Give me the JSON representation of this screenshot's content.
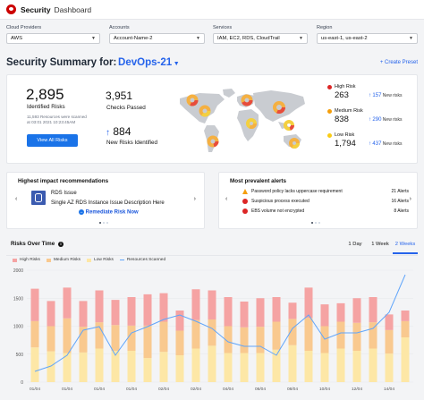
{
  "app": {
    "brand": "Security",
    "section": "Dashboard"
  },
  "filters": [
    {
      "label": "Cloud Providers",
      "value": "AWS"
    },
    {
      "label": "Accounts",
      "value": "Account-Name-2"
    },
    {
      "label": "Services",
      "value": "IAM, EC2, RDS, CloudTrail"
    },
    {
      "label": "Region",
      "value": "us-east-1, us-east-2"
    }
  ],
  "summary": {
    "title_prefix": "Security Summary for:",
    "project": "DevOps-21",
    "create_preset": "+ Create Preset",
    "identified_risks_value": "2,895",
    "identified_risks_label": "Identified Risks",
    "scan_note_line1": "11,593 Resources were scanned",
    "scan_note_line2": "at 03:01 2021 10:23:45AM",
    "view_all_button": "View All Risks",
    "checks_passed_value": "3,951",
    "checks_passed_label": "Checks Passed",
    "new_risks_value": "884",
    "new_risks_label": "New Risks Identified",
    "new_risks_arrow": "↑"
  },
  "risks": [
    {
      "label": "High Risk",
      "value": "263",
      "delta": "157",
      "delta_label": "New risks",
      "color": "#dc2626"
    },
    {
      "label": "Medium Risk",
      "value": "838",
      "delta": "290",
      "delta_label": "New risks",
      "color": "#f59e0b"
    },
    {
      "label": "Low Risk",
      "value": "1,794",
      "delta": "437",
      "delta_label": "New risks",
      "color": "#facc15"
    }
  ],
  "recommendations": {
    "title": "Highest impact recommendations",
    "item_title": "RDS Issue",
    "item_desc": "Single AZ RDS Instance Issue Description Here",
    "action": "Remediate Risk Now"
  },
  "alerts": {
    "title": "Most prevalent alerts",
    "items": [
      {
        "text": "Password policy lacks uppercase requirement",
        "count": "21 Alerts",
        "color": "#f59e0b",
        "icon": "warning-icon"
      },
      {
        "text": "Suspicious process executed",
        "count": "16 Alerts",
        "color": "#dc2626",
        "icon": "error-icon"
      },
      {
        "text": "EBS volume not encrypted",
        "count": "8 Alerts",
        "color": "#dc2626",
        "icon": "error-icon"
      }
    ]
  },
  "risks_over_time": {
    "title": "Risks Over Time",
    "tabs": [
      "1 Day",
      "1 Week",
      "2 Weeks"
    ],
    "active_tab": "2 Weeks"
  },
  "chart_data": {
    "type": "bar",
    "stacked": true,
    "categories": [
      "01/04",
      "01/04",
      "01/04",
      "01/04",
      "01/04",
      "01/04",
      "01/04",
      "01/04",
      "02/04",
      "02/04",
      "02/04",
      "03/04",
      "04/04",
      "05/04",
      "06/04",
      "07/04",
      "08/04",
      "09/04",
      "10/04",
      "11/04",
      "12/04",
      "13/04",
      "14/04",
      "14/04"
    ],
    "ylim": [
      0,
      2000
    ],
    "yticks": [
      0,
      500,
      1000,
      1500,
      2000
    ],
    "legend_position": "top-left",
    "grid": true,
    "series": [
      {
        "name": "Low Risks",
        "color": "#fde7a6",
        "values": [
          620,
          550,
          520,
          530,
          600,
          560,
          560,
          430,
          540,
          480,
          600,
          650,
          520,
          520,
          520,
          580,
          660,
          560,
          520,
          600,
          560,
          600,
          510,
          800
        ]
      },
      {
        "name": "Medium Risks",
        "color": "#f9c98f",
        "values": [
          470,
          450,
          620,
          460,
          470,
          460,
          450,
          580,
          540,
          440,
          510,
          470,
          480,
          460,
          470,
          500,
          470,
          590,
          480,
          480,
          500,
          470,
          420,
          290
        ]
      },
      {
        "name": "High Risks",
        "color": "#f5a3a3",
        "values": [
          580,
          450,
          550,
          460,
          570,
          450,
          510,
          560,
          510,
          360,
          550,
          520,
          520,
          460,
          510,
          440,
          290,
          540,
          390,
          330,
          440,
          450,
          280,
          190
        ]
      },
      {
        "name": "Resources Scanned",
        "type": "line",
        "color": "#60a5fa",
        "values": [
          12,
          18,
          30,
          58,
          62,
          30,
          55,
          62,
          70,
          75,
          68,
          60,
          45,
          40,
          40,
          30,
          60,
          75,
          48,
          55,
          55,
          60,
          78,
          120
        ]
      }
    ]
  }
}
